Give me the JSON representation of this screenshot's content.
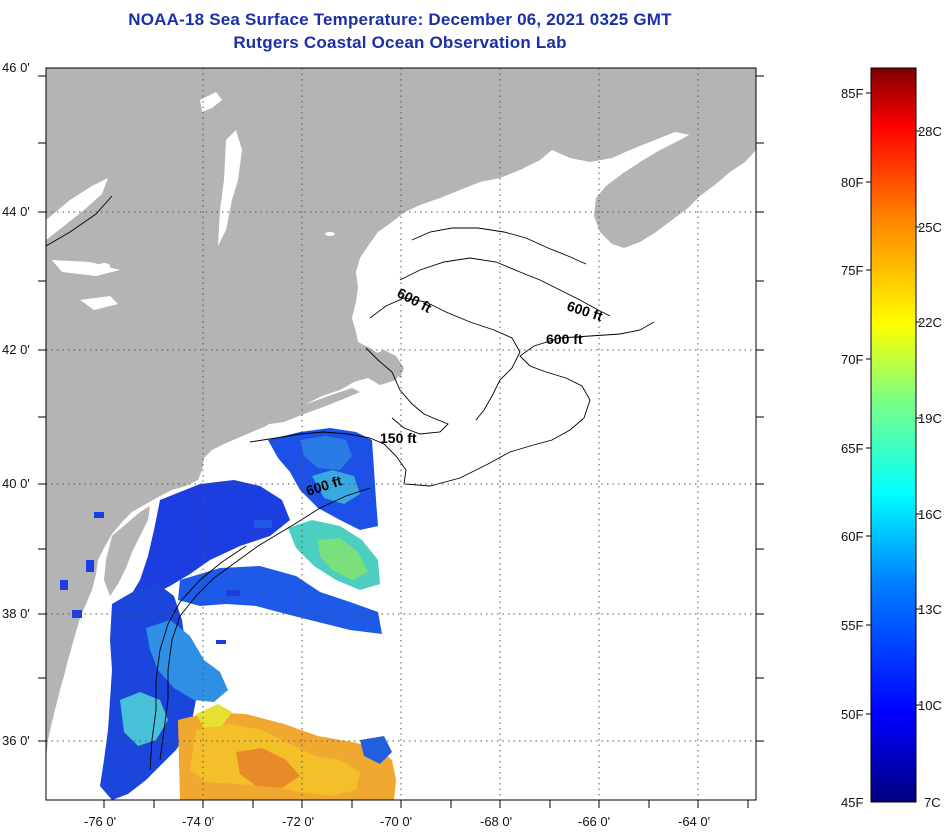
{
  "title": "NOAA-18 Sea Surface Temperature:  December 06, 2021 0325 GMT",
  "subtitle": "Rutgers Coastal Ocean Observation Lab",
  "lat_labels": [
    "46 0'",
    "44 0'",
    "42 0'",
    "40 0'",
    "38 0'",
    "36 0'"
  ],
  "lon_labels": [
    "-76 0'",
    "-74 0'",
    "-72 0'",
    "-70 0'",
    "-68 0'",
    "-66 0'",
    "-64 0'"
  ],
  "contour_labels": [
    "600 ft",
    "600 ft",
    "600 ft",
    "150 ft",
    "600 ft"
  ],
  "colorbar": {
    "f_labels": [
      "85F",
      "80F",
      "75F",
      "70F",
      "65F",
      "60F",
      "55F",
      "50F",
      "45F"
    ],
    "c_labels": [
      "28C",
      "25C",
      "22C",
      "19C",
      "16C",
      "13C",
      "10C",
      "7C"
    ]
  },
  "colors": {
    "land": "#b4b4b4",
    "ocean": "#ffffff",
    "title": "#1a2fa8"
  }
}
